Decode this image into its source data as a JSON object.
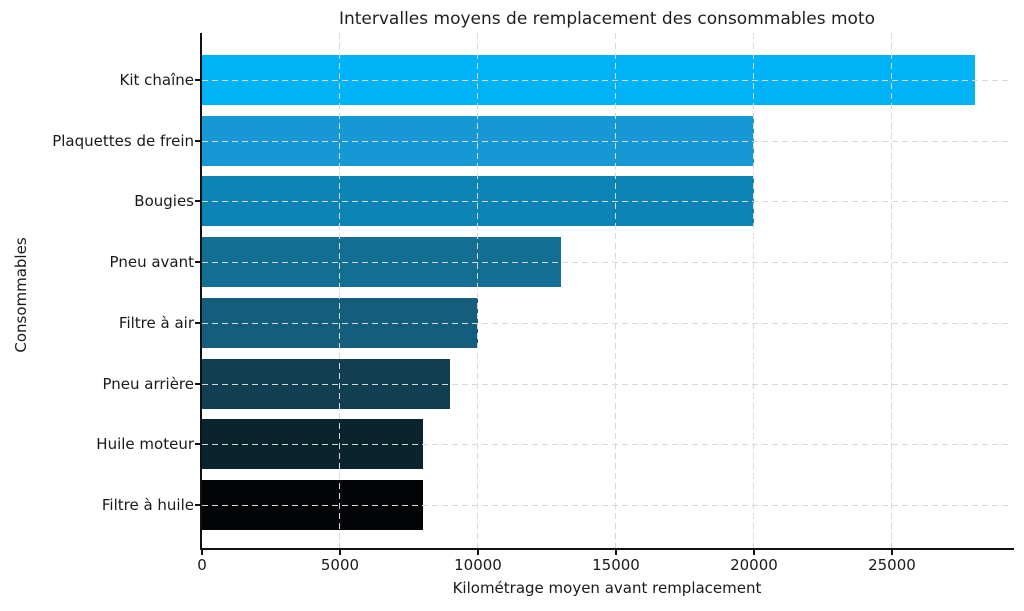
{
  "chart_data": {
    "type": "bar",
    "orientation": "horizontal",
    "title": "Intervalles moyens de remplacement des consommables moto",
    "xlabel": "Kilométrage moyen avant remplacement",
    "ylabel": "Consommables",
    "categories": [
      "Kit chaîne",
      "Plaquettes de frein",
      "Bougies",
      "Pneu avant",
      "Filtre à air",
      "Pneu arrière",
      "Huile moteur",
      "Filtre à huile"
    ],
    "values": [
      28000,
      20000,
      20000,
      13000,
      10000,
      9000,
      8000,
      8000
    ],
    "bar_colors": [
      "#00b3f7",
      "#1598d3",
      "#0c84b5",
      "#136e94",
      "#155d7c",
      "#113e50",
      "#0a242d",
      "#030405"
    ],
    "x_ticks": [
      0,
      5000,
      10000,
      15000,
      20000,
      25000
    ],
    "xlim": [
      0,
      29350
    ],
    "grid": "dashed",
    "grid_color": "#d8d8d8",
    "legend": "none",
    "background_color": "#ffffff",
    "spine_color": "#111111",
    "text_color": "#1a1a1a"
  }
}
